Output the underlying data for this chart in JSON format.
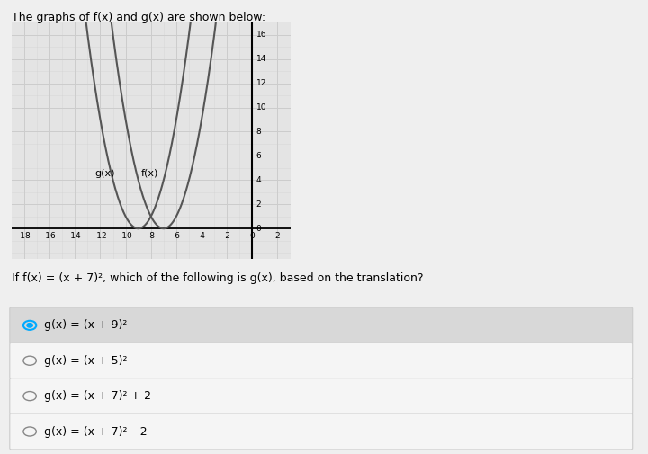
{
  "title": "The graphs of f(x) and g(x) are shown below:",
  "f_vertex": -7,
  "g_vertex": -9,
  "xlim": [
    -19,
    3
  ],
  "ylim": [
    -2.5,
    17
  ],
  "xticks": [
    -18,
    -16,
    -14,
    -12,
    -10,
    -8,
    -6,
    -4,
    -2,
    0,
    2
  ],
  "yticks": [
    0,
    2,
    4,
    6,
    8,
    10,
    12,
    14,
    16
  ],
  "fx_label": "f(x)",
  "gx_label": "g(x)",
  "curve_color": "#555555",
  "grid_color": "#cccccc",
  "bg_color": "#efefef",
  "plot_bg": "#e4e4e4",
  "question_text": "If f(x) = (x + 7)², which of the following is g(x), based on the translation?",
  "options": [
    "g(x) = (x + 9)²",
    "g(x) = (x + 5)²",
    "g(x) = (x + 7)² + 2",
    "g(x) = (x + 7)² – 2"
  ],
  "selected_option": 0,
  "option_bg_selected": "#d8d8d8",
  "option_bg_normal": "#f5f5f5",
  "option_border": "#cccccc",
  "radio_selected_color": "#00aaff",
  "radio_normal_color": "#888888"
}
